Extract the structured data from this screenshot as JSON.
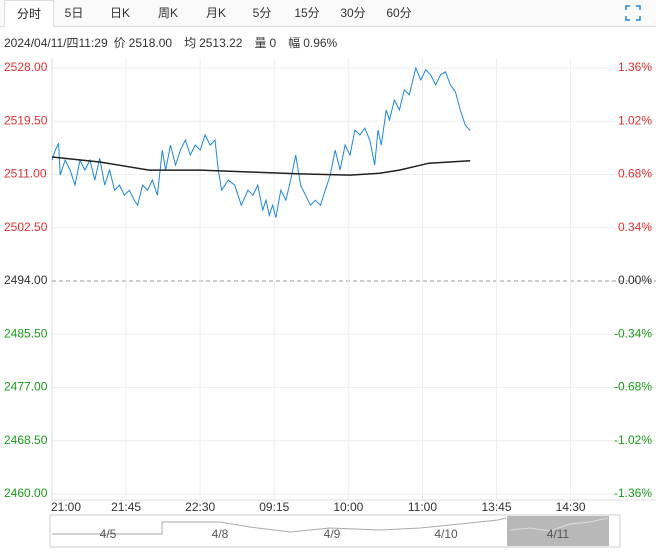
{
  "tabs": [
    "分时",
    "5日",
    "日K",
    "周K",
    "月K",
    "5分",
    "15分",
    "30分",
    "60分"
  ],
  "info": {
    "time": "2024/04/11/四11:29",
    "price_label": "价",
    "price": "2518.00",
    "avg_label": "均",
    "avg": "2513.22",
    "vol_label": "量",
    "vol": "0",
    "range_label": "幅",
    "range": "0.96%"
  },
  "navigator": {
    "dates": [
      "4/5",
      "4/8",
      "4/9",
      "4/10",
      "4/11"
    ]
  },
  "chart_data": {
    "type": "line",
    "xlim": [
      0,
      345
    ],
    "xticks": [
      {
        "value": 0,
        "label": "21:00"
      },
      {
        "value": 45,
        "label": "21:45"
      },
      {
        "value": 90,
        "label": "22:30"
      },
      {
        "value": 135,
        "label": "09:15"
      },
      {
        "value": 180,
        "label": "10:00"
      },
      {
        "value": 225,
        "label": "11:00"
      },
      {
        "value": 270,
        "label": "13:45"
      },
      {
        "value": 315,
        "label": "14:30"
      }
    ],
    "ylim": [
      2460,
      2528
    ],
    "yticks": [
      {
        "value": 2528,
        "label": "2528.00"
      },
      {
        "value": 2519.5,
        "label": "2519.50"
      },
      {
        "value": 2511,
        "label": "2511.00"
      },
      {
        "value": 2502.5,
        "label": "2502.50"
      },
      {
        "value": 2494,
        "label": "2494.00"
      },
      {
        "value": 2485.5,
        "label": "2485.50"
      },
      {
        "value": 2477,
        "label": "2477.00"
      },
      {
        "value": 2468.5,
        "label": "2468.50"
      },
      {
        "value": 2460,
        "label": "2460.00"
      }
    ],
    "y2lim": [
      -1.36,
      1.36
    ],
    "y2ticks": [
      {
        "value": 1.36,
        "label": "1.36%"
      },
      {
        "value": 1.02,
        "label": "1.02%"
      },
      {
        "value": 0.68,
        "label": "0.68%"
      },
      {
        "value": 0.34,
        "label": "0.34%"
      },
      {
        "value": 0,
        "label": "0.00%"
      },
      {
        "value": -0.34,
        "label": "-0.34%"
      },
      {
        "value": -0.68,
        "label": "-0.68%"
      },
      {
        "value": -1.02,
        "label": "-1.02%"
      },
      {
        "value": -1.36,
        "label": "-1.36%"
      }
    ],
    "reference_line": 2494,
    "grid": true,
    "series": [
      {
        "color": "#1e88d8",
        "x": [
          0,
          2,
          4,
          5,
          8,
          11,
          14,
          17,
          20,
          23,
          26,
          29,
          32,
          35,
          38,
          41,
          44,
          47,
          50,
          52,
          55,
          58,
          61,
          64,
          67,
          69,
          72,
          75,
          78,
          81,
          84,
          87,
          90,
          93,
          96,
          99,
          101,
          103,
          107,
          111,
          115,
          119,
          122,
          125,
          128,
          130,
          132,
          134,
          136,
          139,
          142,
          145,
          148,
          151,
          154,
          157,
          160,
          163,
          166,
          169,
          172,
          175,
          178,
          181,
          184,
          187,
          190,
          193,
          196,
          198,
          200,
          203,
          205,
          208,
          211,
          214,
          217,
          221,
          224,
          227,
          230,
          233,
          236,
          239,
          242,
          245,
          248,
          251,
          254
        ],
        "values": [
          2513.3,
          2514.9,
          2516.0,
          2510.9,
          2513.3,
          2511.7,
          2509.3,
          2513.3,
          2511.7,
          2513.3,
          2510.1,
          2513.6,
          2509.3,
          2511.7,
          2508.5,
          2509.3,
          2507.7,
          2508.5,
          2506.9,
          2506.1,
          2509.3,
          2508.5,
          2510.1,
          2507.7,
          2514.9,
          2511.7,
          2515.7,
          2512.5,
          2514.9,
          2516.5,
          2514.1,
          2515.7,
          2514.9,
          2517.3,
          2515.7,
          2516.5,
          2511.7,
          2508.5,
          2510.1,
          2509.3,
          2506.1,
          2508.5,
          2507.7,
          2509.3,
          2505.3,
          2506.9,
          2504.5,
          2506.1,
          2504.1,
          2508.5,
          2506.9,
          2510.1,
          2514.1,
          2509.3,
          2507.7,
          2506.1,
          2506.9,
          2506.1,
          2508.5,
          2510.9,
          2514.9,
          2511.7,
          2515.7,
          2514.1,
          2518.1,
          2517.3,
          2518.4,
          2516.5,
          2512.5,
          2518.1,
          2515.7,
          2521.3,
          2519.7,
          2522.9,
          2521.3,
          2524.5,
          2523.7,
          2528.0,
          2526.1,
          2527.7,
          2526.9,
          2525.3,
          2526.9,
          2527.4,
          2525.3,
          2524.2,
          2521.3,
          2518.9,
          2518.0
        ]
      },
      {
        "color": "#222222",
        "x": [
          0,
          29,
          59,
          90,
          120,
          151,
          181,
          199,
          211,
          229,
          254
        ],
        "values": [
          2513.8,
          2513.0,
          2511.7,
          2511.7,
          2511.4,
          2511.1,
          2510.9,
          2511.2,
          2511.7,
          2512.8,
          2513.2
        ]
      }
    ]
  }
}
